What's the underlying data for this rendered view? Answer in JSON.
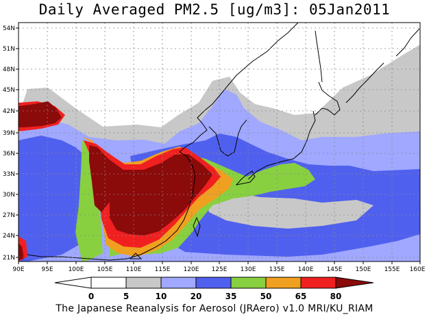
{
  "title": "Daily Averaged PM2.5 [ug/m3]: 05Jan2011",
  "footer": "The Japanese Reanalysis for Aerosol (JRAero) v1.0 MRI/KU_RIAM",
  "map": {
    "lon_range": [
      90,
      160
    ],
    "lat_range": [
      20,
      55
    ],
    "lon_ticks": [
      "90E",
      "95E",
      "100E",
      "105E",
      "110E",
      "115E",
      "120E",
      "125E",
      "130E",
      "135E",
      "140E",
      "145E",
      "150E",
      "155E",
      "160E"
    ],
    "lat_ticks": [
      "21N",
      "24N",
      "27N",
      "30N",
      "33N",
      "36N",
      "39N",
      "42N",
      "45N",
      "48N",
      "51N",
      "54N"
    ],
    "grid": true
  },
  "colorbar": {
    "levels": [
      "0",
      "5",
      "10",
      "20",
      "35",
      "50",
      "65",
      "80"
    ],
    "colors": [
      "#ffffff",
      "#c8c8c8",
      "#a0a8ff",
      "#5060ee",
      "#88d040",
      "#f0a020",
      "#f02020",
      "#8b0a0a"
    ]
  }
}
